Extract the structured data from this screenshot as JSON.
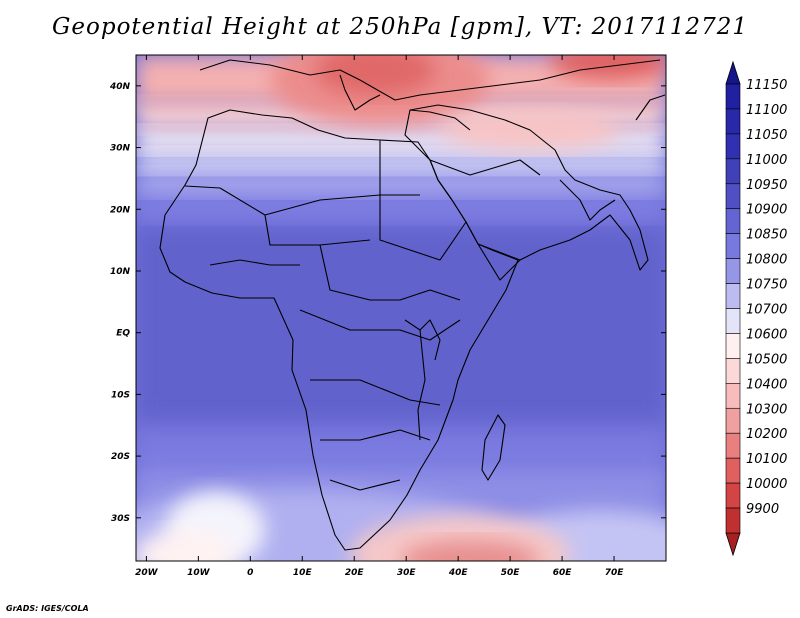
{
  "title": "Geopotential Height at 250hPa [gpm], VT: 2017112721",
  "credit": "GrADS: IGES/COLA",
  "map": {
    "region": "Africa",
    "lon_range": [
      -22,
      80
    ],
    "lat_range": [
      -37,
      45
    ],
    "lon_ticks": [
      {
        "value": -20,
        "label": "20W"
      },
      {
        "value": -10,
        "label": "10W"
      },
      {
        "value": 0,
        "label": "0"
      },
      {
        "value": 10,
        "label": "10E"
      },
      {
        "value": 20,
        "label": "20E"
      },
      {
        "value": 30,
        "label": "30E"
      },
      {
        "value": 40,
        "label": "40E"
      },
      {
        "value": 50,
        "label": "50E"
      },
      {
        "value": 60,
        "label": "60E"
      },
      {
        "value": 70,
        "label": "70E"
      }
    ],
    "lat_ticks": [
      {
        "value": 40,
        "label": "40N"
      },
      {
        "value": 30,
        "label": "30N"
      },
      {
        "value": 20,
        "label": "20N"
      },
      {
        "value": 10,
        "label": "10N"
      },
      {
        "value": 0,
        "label": "EQ"
      },
      {
        "value": -10,
        "label": "10S"
      },
      {
        "value": -20,
        "label": "20S"
      },
      {
        "value": -30,
        "label": "30S"
      }
    ]
  },
  "colorbar": {
    "levels": [
      {
        "label": "11150",
        "color": "#2020a0"
      },
      {
        "label": "11100",
        "color": "#2828a8"
      },
      {
        "label": "11050",
        "color": "#3030b0"
      },
      {
        "label": "11000",
        "color": "#4040b8"
      },
      {
        "label": "10950",
        "color": "#5050c4"
      },
      {
        "label": "10900",
        "color": "#6464d2"
      },
      {
        "label": "10850",
        "color": "#7878de"
      },
      {
        "label": "10800",
        "color": "#9696e6"
      },
      {
        "label": "10750",
        "color": "#bcbcf0"
      },
      {
        "label": "10700",
        "color": "#e4e4f8"
      },
      {
        "label": "10600",
        "color": "#fff0f0"
      },
      {
        "label": "10500",
        "color": "#fcd8d8"
      },
      {
        "label": "10400",
        "color": "#f8bcbc"
      },
      {
        "label": "10300",
        "color": "#f0a0a0"
      },
      {
        "label": "10200",
        "color": "#e88080"
      },
      {
        "label": "10100",
        "color": "#e06060"
      },
      {
        "label": "10000",
        "color": "#d44444"
      },
      {
        "label": "9900",
        "color": "#c03030"
      }
    ],
    "top_arrow_color": "#16168c",
    "bottom_arrow_color": "#a82020"
  }
}
